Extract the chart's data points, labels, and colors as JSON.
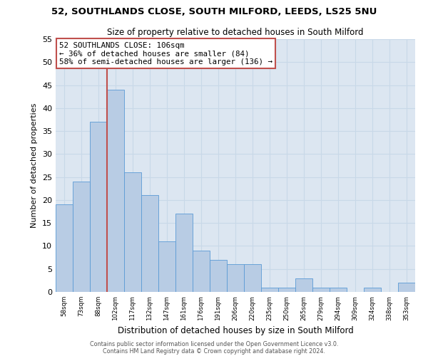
{
  "title": "52, SOUTHLANDS CLOSE, SOUTH MILFORD, LEEDS, LS25 5NU",
  "subtitle": "Size of property relative to detached houses in South Milford",
  "xlabel": "Distribution of detached houses by size in South Milford",
  "ylabel": "Number of detached properties",
  "footnote1": "Contains HM Land Registry data © Crown copyright and database right 2024.",
  "footnote2": "Contains public sector information licensed under the Open Government Licence v3.0.",
  "annotation_line1": "52 SOUTHLANDS CLOSE: 106sqm",
  "annotation_line2": "← 36% of detached houses are smaller (84)",
  "annotation_line3": "58% of semi-detached houses are larger (136) →",
  "categories": [
    "58sqm",
    "73sqm",
    "88sqm",
    "102sqm",
    "117sqm",
    "132sqm",
    "147sqm",
    "161sqm",
    "176sqm",
    "191sqm",
    "206sqm",
    "220sqm",
    "235sqm",
    "250sqm",
    "265sqm",
    "279sqm",
    "294sqm",
    "309sqm",
    "324sqm",
    "338sqm",
    "353sqm"
  ],
  "values": [
    19,
    24,
    37,
    44,
    26,
    21,
    11,
    17,
    9,
    7,
    6,
    6,
    1,
    1,
    3,
    1,
    1,
    0,
    1,
    0,
    2
  ],
  "red_line_x": 3,
  "bar_color": "#b8cce4",
  "bar_edge_color": "#5b9bd5",
  "red_line_color": "#c0504d",
  "grid_color": "#c8d8e8",
  "bg_color": "#dce6f1",
  "annotation_box_facecolor": "#ffffff",
  "annotation_box_edgecolor": "#c0504d",
  "ylim": [
    0,
    55
  ],
  "yticks": [
    0,
    5,
    10,
    15,
    20,
    25,
    30,
    35,
    40,
    45,
    50,
    55
  ]
}
